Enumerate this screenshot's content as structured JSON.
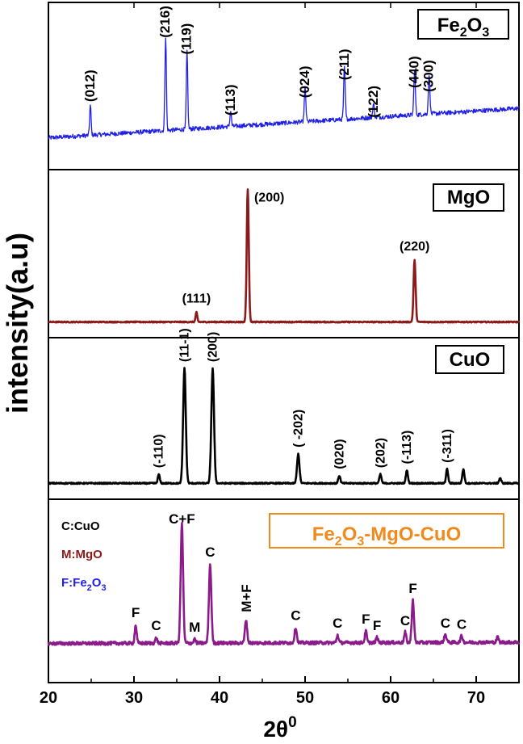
{
  "figure": {
    "ylabel": "intensity(a.u)",
    "xlabel_main": "2θ",
    "xlabel_sup": "0",
    "xlim": [
      20,
      75
    ],
    "xticks": [
      20,
      30,
      40,
      50,
      60,
      70
    ]
  },
  "chart_data": [
    {
      "type": "line",
      "panel": "Fe2O3",
      "color": "#1f1fe6",
      "legend_main": "Fe",
      "legend_sub1": "2",
      "legend_mid": "O",
      "legend_sub2": "3",
      "baseline_start": 0.06,
      "baseline_end": 0.36,
      "noise": 0.045,
      "peaks": [
        {
          "x": 24.9,
          "h": 0.3,
          "w": 0.12,
          "label": "(012)"
        },
        {
          "x": 33.7,
          "h": 0.95,
          "w": 0.12,
          "label": "(216)"
        },
        {
          "x": 36.2,
          "h": 0.78,
          "w": 0.12,
          "label": "(119)"
        },
        {
          "x": 41.3,
          "h": 0.16,
          "w": 0.12,
          "label": "(113)"
        },
        {
          "x": 50.0,
          "h": 0.34,
          "w": 0.13,
          "label": "(024)"
        },
        {
          "x": 54.6,
          "h": 0.52,
          "w": 0.13,
          "label": "(211)"
        },
        {
          "x": 58.0,
          "h": 0.14,
          "w": 0.13,
          "label": "(122)"
        },
        {
          "x": 62.8,
          "h": 0.44,
          "w": 0.13,
          "label": "(440)"
        },
        {
          "x": 64.5,
          "h": 0.4,
          "w": 0.13,
          "label": "(300)"
        }
      ]
    },
    {
      "type": "line",
      "panel": "MgO",
      "color": "#8b1a1a",
      "legend": "MgO",
      "baseline_start": 0.02,
      "baseline_end": 0.02,
      "noise": 0.008,
      "peaks": [
        {
          "x": 37.3,
          "h": 0.07,
          "w": 0.14,
          "label": "(111)"
        },
        {
          "x": 43.3,
          "h": 0.97,
          "w": 0.17,
          "label": "(200)"
        },
        {
          "x": 62.8,
          "h": 0.45,
          "w": 0.17,
          "label": "(220)"
        }
      ]
    },
    {
      "type": "line",
      "panel": "CuO",
      "color": "#000000",
      "legend": "CuO",
      "baseline_start": 0.03,
      "baseline_end": 0.03,
      "noise": 0.01,
      "peaks": [
        {
          "x": 32.9,
          "h": 0.07,
          "w": 0.16,
          "label": "(-110)"
        },
        {
          "x": 35.9,
          "h": 0.9,
          "w": 0.22,
          "label": "(11-1)"
        },
        {
          "x": 39.2,
          "h": 0.9,
          "w": 0.22,
          "label": "(200)"
        },
        {
          "x": 49.2,
          "h": 0.23,
          "w": 0.2,
          "label": "( -202)"
        },
        {
          "x": 54.0,
          "h": 0.06,
          "w": 0.17,
          "label": "(020)"
        },
        {
          "x": 58.8,
          "h": 0.07,
          "w": 0.17,
          "label": "(202)"
        },
        {
          "x": 61.9,
          "h": 0.1,
          "w": 0.17,
          "label": "(-113)"
        },
        {
          "x": 66.6,
          "h": 0.11,
          "w": 0.17,
          "label": "(-311)"
        },
        {
          "x": 68.5,
          "h": 0.11,
          "w": 0.17,
          "label": ""
        },
        {
          "x": 72.8,
          "h": 0.04,
          "w": 0.17,
          "label": ""
        }
      ]
    },
    {
      "type": "line",
      "panel": "Fe2O3-MgO-CuO",
      "color": "#8b1a8b",
      "legend_main": "Fe",
      "legend_sub1": "2",
      "legend_mid": "O",
      "legend_sub2": "3",
      "legend_tail": "-MgO-CuO",
      "key": [
        {
          "text": "C:CuO",
          "color": "#000000"
        },
        {
          "text": "M:MgO",
          "color": "#8b1a1a"
        },
        {
          "text": "F:Fe",
          "sub1": "2",
          "mid": "O",
          "sub2": "3",
          "color": "#1f1fe6"
        }
      ],
      "baseline_start": 0.04,
      "baseline_end": 0.05,
      "noise": 0.025,
      "peaks": [
        {
          "x": 30.2,
          "h": 0.14,
          "w": 0.16,
          "label": "F"
        },
        {
          "x": 32.6,
          "h": 0.04,
          "w": 0.16,
          "label": "C"
        },
        {
          "x": 35.6,
          "h": 0.92,
          "w": 0.2,
          "label": "C+F"
        },
        {
          "x": 37.1,
          "h": 0.03,
          "w": 0.16,
          "label": "M"
        },
        {
          "x": 38.9,
          "h": 0.61,
          "w": 0.2,
          "label": "C"
        },
        {
          "x": 43.1,
          "h": 0.18,
          "w": 0.18,
          "label": "M+F"
        },
        {
          "x": 48.9,
          "h": 0.12,
          "w": 0.18,
          "label": "C"
        },
        {
          "x": 53.8,
          "h": 0.06,
          "w": 0.16,
          "label": "C"
        },
        {
          "x": 57.1,
          "h": 0.09,
          "w": 0.16,
          "label": "F"
        },
        {
          "x": 58.4,
          "h": 0.04,
          "w": 0.16,
          "label": "F"
        },
        {
          "x": 61.7,
          "h": 0.08,
          "w": 0.16,
          "label": "C"
        },
        {
          "x": 62.6,
          "h": 0.33,
          "w": 0.18,
          "label": "F"
        },
        {
          "x": 66.4,
          "h": 0.06,
          "w": 0.2,
          "label": "C"
        },
        {
          "x": 68.3,
          "h": 0.05,
          "w": 0.18,
          "label": "C"
        },
        {
          "x": 72.5,
          "h": 0.04,
          "w": 0.16,
          "label": ""
        }
      ]
    }
  ]
}
